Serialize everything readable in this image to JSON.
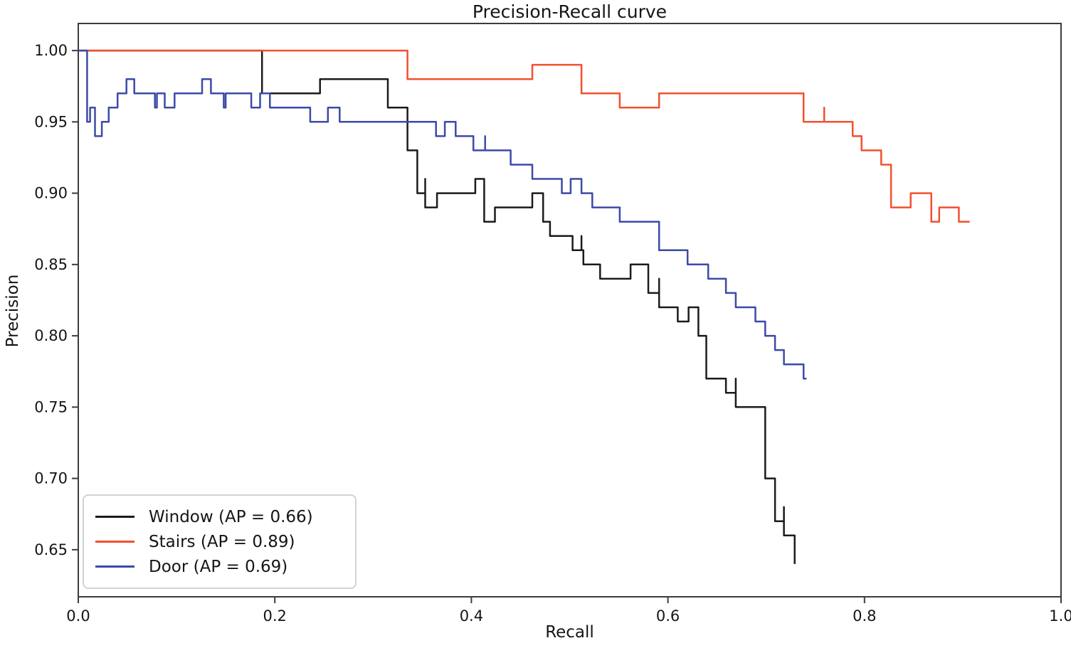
{
  "chart_data": {
    "type": "line",
    "subtype": "precision-recall-step-curves",
    "title": "Precision-Recall curve",
    "xlabel": "Recall",
    "ylabel": "Precision",
    "xlim": [
      0.0,
      1.0
    ],
    "ylim": [
      0.617,
      1.019
    ],
    "xticks": [
      0.0,
      0.2,
      0.4,
      0.6,
      0.8,
      1.0
    ],
    "xtick_labels": [
      "0.0",
      "0.2",
      "0.4",
      "0.6",
      "0.8",
      "1.0"
    ],
    "yticks": [
      0.65,
      0.7,
      0.75,
      0.8,
      0.85,
      0.9,
      0.95,
      1.0
    ],
    "ytick_labels": [
      "0.65",
      "0.70",
      "0.75",
      "0.80",
      "0.85",
      "0.90",
      "0.95",
      "1.00"
    ],
    "grid": false,
    "legend_position": "lower left",
    "axis_color": "#3c3c3c",
    "series": [
      {
        "name": "Window",
        "label": "Window (AP = 0.66)",
        "ap": 0.66,
        "color": "#1b1b1b",
        "points": [
          [
            0.0,
            1.0
          ],
          [
            0.187,
            1.0
          ],
          [
            0.187,
            0.97
          ],
          [
            0.246,
            0.97
          ],
          [
            0.246,
            0.98
          ],
          [
            0.315,
            0.98
          ],
          [
            0.315,
            0.96
          ],
          [
            0.335,
            0.96
          ],
          [
            0.335,
            0.93
          ],
          [
            0.345,
            0.93
          ],
          [
            0.345,
            0.9
          ],
          [
            0.353,
            0.9
          ],
          [
            0.353,
            0.91
          ],
          [
            0.353,
            0.89
          ],
          [
            0.365,
            0.89
          ],
          [
            0.365,
            0.9
          ],
          [
            0.404,
            0.9
          ],
          [
            0.404,
            0.91
          ],
          [
            0.413,
            0.91
          ],
          [
            0.413,
            0.88
          ],
          [
            0.424,
            0.88
          ],
          [
            0.424,
            0.89
          ],
          [
            0.462,
            0.89
          ],
          [
            0.462,
            0.9
          ],
          [
            0.473,
            0.9
          ],
          [
            0.473,
            0.88
          ],
          [
            0.48,
            0.88
          ],
          [
            0.48,
            0.87
          ],
          [
            0.503,
            0.87
          ],
          [
            0.503,
            0.86
          ],
          [
            0.512,
            0.86
          ],
          [
            0.512,
            0.87
          ],
          [
            0.512,
            0.86
          ],
          [
            0.514,
            0.86
          ],
          [
            0.514,
            0.85
          ],
          [
            0.531,
            0.85
          ],
          [
            0.531,
            0.84
          ],
          [
            0.562,
            0.84
          ],
          [
            0.562,
            0.85
          ],
          [
            0.58,
            0.85
          ],
          [
            0.58,
            0.83
          ],
          [
            0.591,
            0.83
          ],
          [
            0.591,
            0.84
          ],
          [
            0.591,
            0.82
          ],
          [
            0.61,
            0.82
          ],
          [
            0.61,
            0.81
          ],
          [
            0.621,
            0.81
          ],
          [
            0.621,
            0.82
          ],
          [
            0.631,
            0.82
          ],
          [
            0.631,
            0.8
          ],
          [
            0.639,
            0.8
          ],
          [
            0.639,
            0.77
          ],
          [
            0.659,
            0.77
          ],
          [
            0.659,
            0.76
          ],
          [
            0.669,
            0.76
          ],
          [
            0.669,
            0.77
          ],
          [
            0.669,
            0.75
          ],
          [
            0.699,
            0.75
          ],
          [
            0.699,
            0.7
          ],
          [
            0.709,
            0.7
          ],
          [
            0.709,
            0.67
          ],
          [
            0.718,
            0.67
          ],
          [
            0.718,
            0.68
          ],
          [
            0.718,
            0.66
          ],
          [
            0.729,
            0.66
          ],
          [
            0.729,
            0.64
          ]
        ]
      },
      {
        "name": "Stairs",
        "label": "Stairs (AP = 0.89)",
        "ap": 0.89,
        "color": "#f2502e",
        "points": [
          [
            0.0,
            1.0
          ],
          [
            0.335,
            1.0
          ],
          [
            0.335,
            0.98
          ],
          [
            0.462,
            0.98
          ],
          [
            0.462,
            0.99
          ],
          [
            0.512,
            0.99
          ],
          [
            0.512,
            0.97
          ],
          [
            0.551,
            0.97
          ],
          [
            0.551,
            0.96
          ],
          [
            0.591,
            0.96
          ],
          [
            0.591,
            0.97
          ],
          [
            0.738,
            0.97
          ],
          [
            0.738,
            0.95
          ],
          [
            0.759,
            0.95
          ],
          [
            0.759,
            0.96
          ],
          [
            0.759,
            0.95
          ],
          [
            0.788,
            0.95
          ],
          [
            0.788,
            0.94
          ],
          [
            0.797,
            0.94
          ],
          [
            0.797,
            0.93
          ],
          [
            0.817,
            0.93
          ],
          [
            0.817,
            0.92
          ],
          [
            0.827,
            0.92
          ],
          [
            0.827,
            0.89
          ],
          [
            0.847,
            0.89
          ],
          [
            0.847,
            0.9
          ],
          [
            0.868,
            0.9
          ],
          [
            0.868,
            0.88
          ],
          [
            0.876,
            0.88
          ],
          [
            0.876,
            0.89
          ],
          [
            0.896,
            0.89
          ],
          [
            0.896,
            0.88
          ],
          [
            0.907,
            0.88
          ]
        ]
      },
      {
        "name": "Door",
        "label": "Door (AP = 0.69)",
        "ap": 0.69,
        "color": "#3c4aa8",
        "points": [
          [
            0.0,
            1.0
          ],
          [
            0.009,
            1.0
          ],
          [
            0.009,
            0.95
          ],
          [
            0.012,
            0.95
          ],
          [
            0.012,
            0.96
          ],
          [
            0.017,
            0.96
          ],
          [
            0.017,
            0.94
          ],
          [
            0.024,
            0.94
          ],
          [
            0.024,
            0.95
          ],
          [
            0.031,
            0.95
          ],
          [
            0.031,
            0.96
          ],
          [
            0.04,
            0.96
          ],
          [
            0.04,
            0.97
          ],
          [
            0.049,
            0.97
          ],
          [
            0.049,
            0.98
          ],
          [
            0.057,
            0.98
          ],
          [
            0.057,
            0.97
          ],
          [
            0.078,
            0.97
          ],
          [
            0.078,
            0.96
          ],
          [
            0.08,
            0.96
          ],
          [
            0.08,
            0.97
          ],
          [
            0.088,
            0.97
          ],
          [
            0.088,
            0.96
          ],
          [
            0.098,
            0.96
          ],
          [
            0.098,
            0.97
          ],
          [
            0.126,
            0.97
          ],
          [
            0.126,
            0.98
          ],
          [
            0.135,
            0.98
          ],
          [
            0.135,
            0.97
          ],
          [
            0.148,
            0.97
          ],
          [
            0.148,
            0.96
          ],
          [
            0.15,
            0.96
          ],
          [
            0.15,
            0.97
          ],
          [
            0.176,
            0.97
          ],
          [
            0.176,
            0.96
          ],
          [
            0.185,
            0.96
          ],
          [
            0.185,
            0.97
          ],
          [
            0.195,
            0.97
          ],
          [
            0.195,
            0.96
          ],
          [
            0.236,
            0.96
          ],
          [
            0.236,
            0.95
          ],
          [
            0.254,
            0.95
          ],
          [
            0.254,
            0.96
          ],
          [
            0.266,
            0.96
          ],
          [
            0.266,
            0.95
          ],
          [
            0.364,
            0.95
          ],
          [
            0.364,
            0.94
          ],
          [
            0.373,
            0.94
          ],
          [
            0.373,
            0.95
          ],
          [
            0.384,
            0.95
          ],
          [
            0.384,
            0.94
          ],
          [
            0.402,
            0.94
          ],
          [
            0.402,
            0.93
          ],
          [
            0.414,
            0.93
          ],
          [
            0.414,
            0.94
          ],
          [
            0.414,
            0.93
          ],
          [
            0.44,
            0.93
          ],
          [
            0.44,
            0.92
          ],
          [
            0.462,
            0.92
          ],
          [
            0.462,
            0.91
          ],
          [
            0.492,
            0.91
          ],
          [
            0.492,
            0.9
          ],
          [
            0.501,
            0.9
          ],
          [
            0.501,
            0.91
          ],
          [
            0.512,
            0.91
          ],
          [
            0.512,
            0.9
          ],
          [
            0.523,
            0.9
          ],
          [
            0.523,
            0.89
          ],
          [
            0.551,
            0.89
          ],
          [
            0.551,
            0.88
          ],
          [
            0.591,
            0.88
          ],
          [
            0.591,
            0.86
          ],
          [
            0.62,
            0.86
          ],
          [
            0.62,
            0.85
          ],
          [
            0.641,
            0.85
          ],
          [
            0.641,
            0.84
          ],
          [
            0.659,
            0.84
          ],
          [
            0.659,
            0.83
          ],
          [
            0.669,
            0.83
          ],
          [
            0.669,
            0.82
          ],
          [
            0.689,
            0.82
          ],
          [
            0.689,
            0.81
          ],
          [
            0.699,
            0.81
          ],
          [
            0.699,
            0.8
          ],
          [
            0.709,
            0.8
          ],
          [
            0.709,
            0.79
          ],
          [
            0.718,
            0.79
          ],
          [
            0.718,
            0.78
          ],
          [
            0.738,
            0.78
          ],
          [
            0.738,
            0.77
          ],
          [
            0.741,
            0.77
          ]
        ]
      }
    ]
  }
}
